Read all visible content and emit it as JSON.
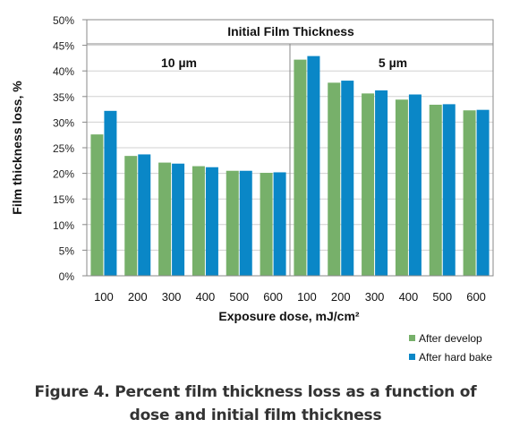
{
  "chart_data": {
    "type": "bar",
    "ylabel": "Film thickness loss, %",
    "xlabel": "Exposure dose, mJ/cm²",
    "header": "Initial Film Thickness",
    "ylim": [
      0,
      50
    ],
    "ytick_step": 5,
    "ytick_labels": [
      "0%",
      "5%",
      "10%",
      "15%",
      "20%",
      "25%",
      "30%",
      "35%",
      "40%",
      "45%",
      "50%"
    ],
    "grid": true,
    "legend_position": "bottom-right",
    "groups": [
      {
        "name": "10 µm",
        "categories": [
          "100",
          "200",
          "300",
          "400",
          "500",
          "600"
        ],
        "series": [
          {
            "name": "After develop",
            "values": [
              27.6,
              23.4,
              22.1,
              21.4,
              20.5,
              20.1
            ]
          },
          {
            "name": "After hard bake",
            "values": [
              32.2,
              23.7,
              21.9,
              21.2,
              20.5,
              20.2
            ]
          }
        ]
      },
      {
        "name": "5 µm",
        "categories": [
          "100",
          "200",
          "300",
          "400",
          "500",
          "600"
        ],
        "series": [
          {
            "name": "After develop",
            "values": [
              42.2,
              37.7,
              35.6,
              34.4,
              33.4,
              32.3
            ]
          },
          {
            "name": "After hard bake",
            "values": [
              42.9,
              38.1,
              36.2,
              35.4,
              33.5,
              32.4
            ]
          }
        ]
      }
    ],
    "legend": [
      "After develop",
      "After hard bake"
    ],
    "colors": {
      "After develop": "#77b06a",
      "After hard bake": "#0a87c7"
    }
  },
  "caption": {
    "line1": "Figure 4. Percent film thickness loss as a function of",
    "line2": "dose and initial film thickness"
  }
}
